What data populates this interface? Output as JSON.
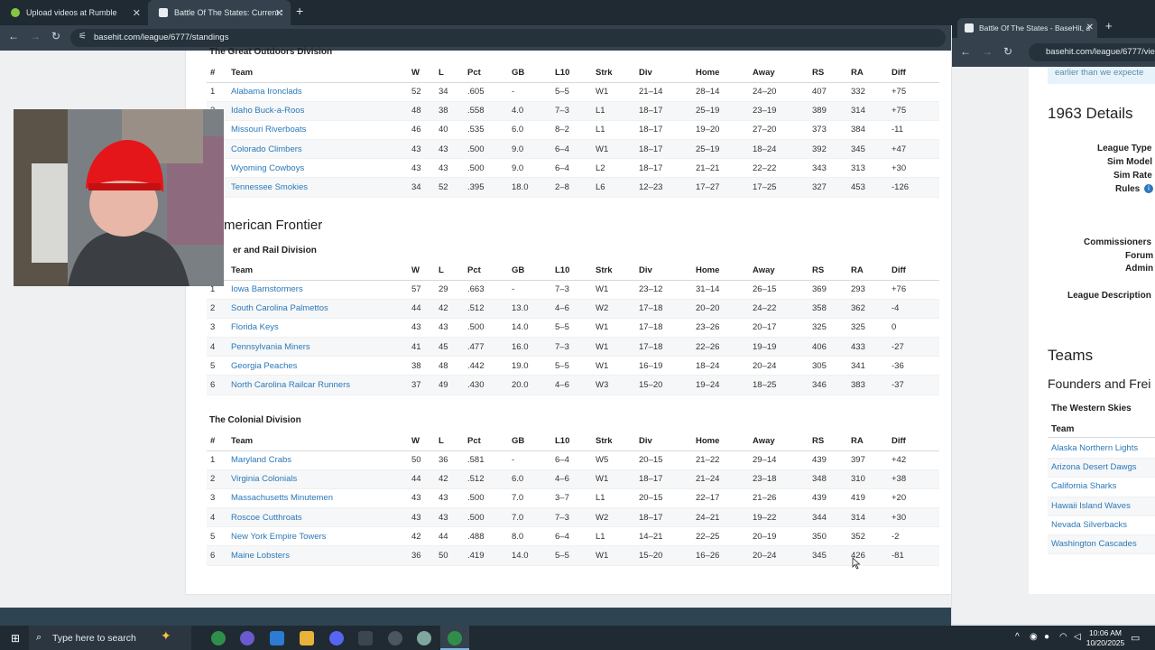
{
  "browser": {
    "tabs": [
      {
        "label": "Upload videos at Rumble"
      },
      {
        "label": "Battle Of The States: Current Se"
      }
    ],
    "url": "basehit.com/league/6777/standings"
  },
  "standings": {
    "columns": [
      "#",
      "Team",
      "W",
      "L",
      "Pct",
      "GB",
      "L10",
      "Strk",
      "Div",
      "Home",
      "Away",
      "RS",
      "RA",
      "Diff"
    ],
    "divisions": [
      {
        "name": "The Great Outdoors Division",
        "rows": [
          [
            "1",
            "Alabama Ironclads",
            "52",
            "34",
            ".605",
            "-",
            "5–5",
            "W1",
            "21–14",
            "28–14",
            "24–20",
            "407",
            "332",
            "+75"
          ],
          [
            "2",
            "Idaho Buck-a-Roos",
            "48",
            "38",
            ".558",
            "4.0",
            "7–3",
            "L1",
            "18–17",
            "25–19",
            "23–19",
            "389",
            "314",
            "+75"
          ],
          [
            "3",
            "Missouri Riverboats",
            "46",
            "40",
            ".535",
            "6.0",
            "8–2",
            "L1",
            "18–17",
            "19–20",
            "27–20",
            "373",
            "384",
            "-11"
          ],
          [
            "4",
            "Colorado Climbers",
            "43",
            "43",
            ".500",
            "9.0",
            "6–4",
            "W1",
            "18–17",
            "25–19",
            "18–24",
            "392",
            "345",
            "+47"
          ],
          [
            "5",
            "Wyoming Cowboys",
            "43",
            "43",
            ".500",
            "9.0",
            "6–4",
            "L2",
            "18–17",
            "21–21",
            "22–22",
            "343",
            "313",
            "+30"
          ],
          [
            "6",
            "Tennessee Smokies",
            "34",
            "52",
            ".395",
            "18.0",
            "2–8",
            "L6",
            "12–23",
            "17–27",
            "17–25",
            "327",
            "453",
            "-126"
          ]
        ]
      },
      {
        "conference": "merican Frontier",
        "name": "er and Rail Division",
        "rows": [
          [
            "1",
            "Iowa Barnstormers",
            "57",
            "29",
            ".663",
            "-",
            "7–3",
            "W1",
            "23–12",
            "31–14",
            "26–15",
            "369",
            "293",
            "+76"
          ],
          [
            "2",
            "South Carolina Palmettos",
            "44",
            "42",
            ".512",
            "13.0",
            "4–6",
            "W2",
            "17–18",
            "20–20",
            "24–22",
            "358",
            "362",
            "-4"
          ],
          [
            "3",
            "Florida Keys",
            "43",
            "43",
            ".500",
            "14.0",
            "5–5",
            "W1",
            "17–18",
            "23–26",
            "20–17",
            "325",
            "325",
            "0"
          ],
          [
            "4",
            "Pennsylvania Miners",
            "41",
            "45",
            ".477",
            "16.0",
            "7–3",
            "W1",
            "17–18",
            "22–26",
            "19–19",
            "406",
            "433",
            "-27"
          ],
          [
            "5",
            "Georgia Peaches",
            "38",
            "48",
            ".442",
            "19.0",
            "5–5",
            "W1",
            "16–19",
            "18–24",
            "20–24",
            "305",
            "341",
            "-36"
          ],
          [
            "6",
            "North Carolina Railcar Runners",
            "37",
            "49",
            ".430",
            "20.0",
            "4–6",
            "W3",
            "15–20",
            "19–24",
            "18–25",
            "346",
            "383",
            "-37"
          ]
        ]
      },
      {
        "name": "The Colonial Division",
        "rows": [
          [
            "1",
            "Maryland Crabs",
            "50",
            "36",
            ".581",
            "-",
            "6–4",
            "W5",
            "20–15",
            "21–22",
            "29–14",
            "439",
            "397",
            "+42"
          ],
          [
            "2",
            "Virginia Colonials",
            "44",
            "42",
            ".512",
            "6.0",
            "4–6",
            "W1",
            "18–17",
            "21–24",
            "23–18",
            "348",
            "310",
            "+38"
          ],
          [
            "3",
            "Massachusetts Minutemen",
            "43",
            "43",
            ".500",
            "7.0",
            "3–7",
            "L1",
            "20–15",
            "22–17",
            "21–26",
            "439",
            "419",
            "+20"
          ],
          [
            "4",
            "Roscoe Cutthroats",
            "43",
            "43",
            ".500",
            "7.0",
            "7–3",
            "W2",
            "18–17",
            "24–21",
            "19–22",
            "344",
            "314",
            "+30"
          ],
          [
            "5",
            "New York Empire Towers",
            "42",
            "44",
            ".488",
            "8.0",
            "6–4",
            "L1",
            "14–21",
            "22–25",
            "20–19",
            "350",
            "352",
            "-2"
          ],
          [
            "6",
            "Maine Lobsters",
            "36",
            "50",
            ".419",
            "14.0",
            "5–5",
            "W1",
            "15–20",
            "16–26",
            "20–24",
            "345",
            "426",
            "-81"
          ]
        ]
      }
    ]
  },
  "second_window": {
    "tab_label": "Battle Of The States - BaseHit, a",
    "url": "basehit.com/league/6777/vie",
    "notice_fragment": "earlier than we expecte",
    "details_heading": "1963 Details",
    "detail_labels": [
      "League Type",
      "Sim Model",
      "Sim Rate",
      "Rules",
      "Commissioners",
      "Forum",
      "Admin",
      "League Description"
    ],
    "teams_heading": "Teams",
    "conference_heading": "Founders and Frei",
    "division_heading": "The Western Skies",
    "team_column": "Team",
    "teams": [
      "Alaska Northern Lights",
      "Arizona Desert Dawgs",
      "California Sharks",
      "Hawaii Island Waves",
      "Nevada Silverbacks",
      "Washington Cascades"
    ]
  },
  "taskbar": {
    "search_placeholder": "Type here to search",
    "time": "10:06 AM",
    "date": "10/20/2025"
  },
  "colors": {
    "link": "#2b78b8",
    "chrome_dark": "#1f2a33",
    "chrome_mid": "#35424d"
  }
}
